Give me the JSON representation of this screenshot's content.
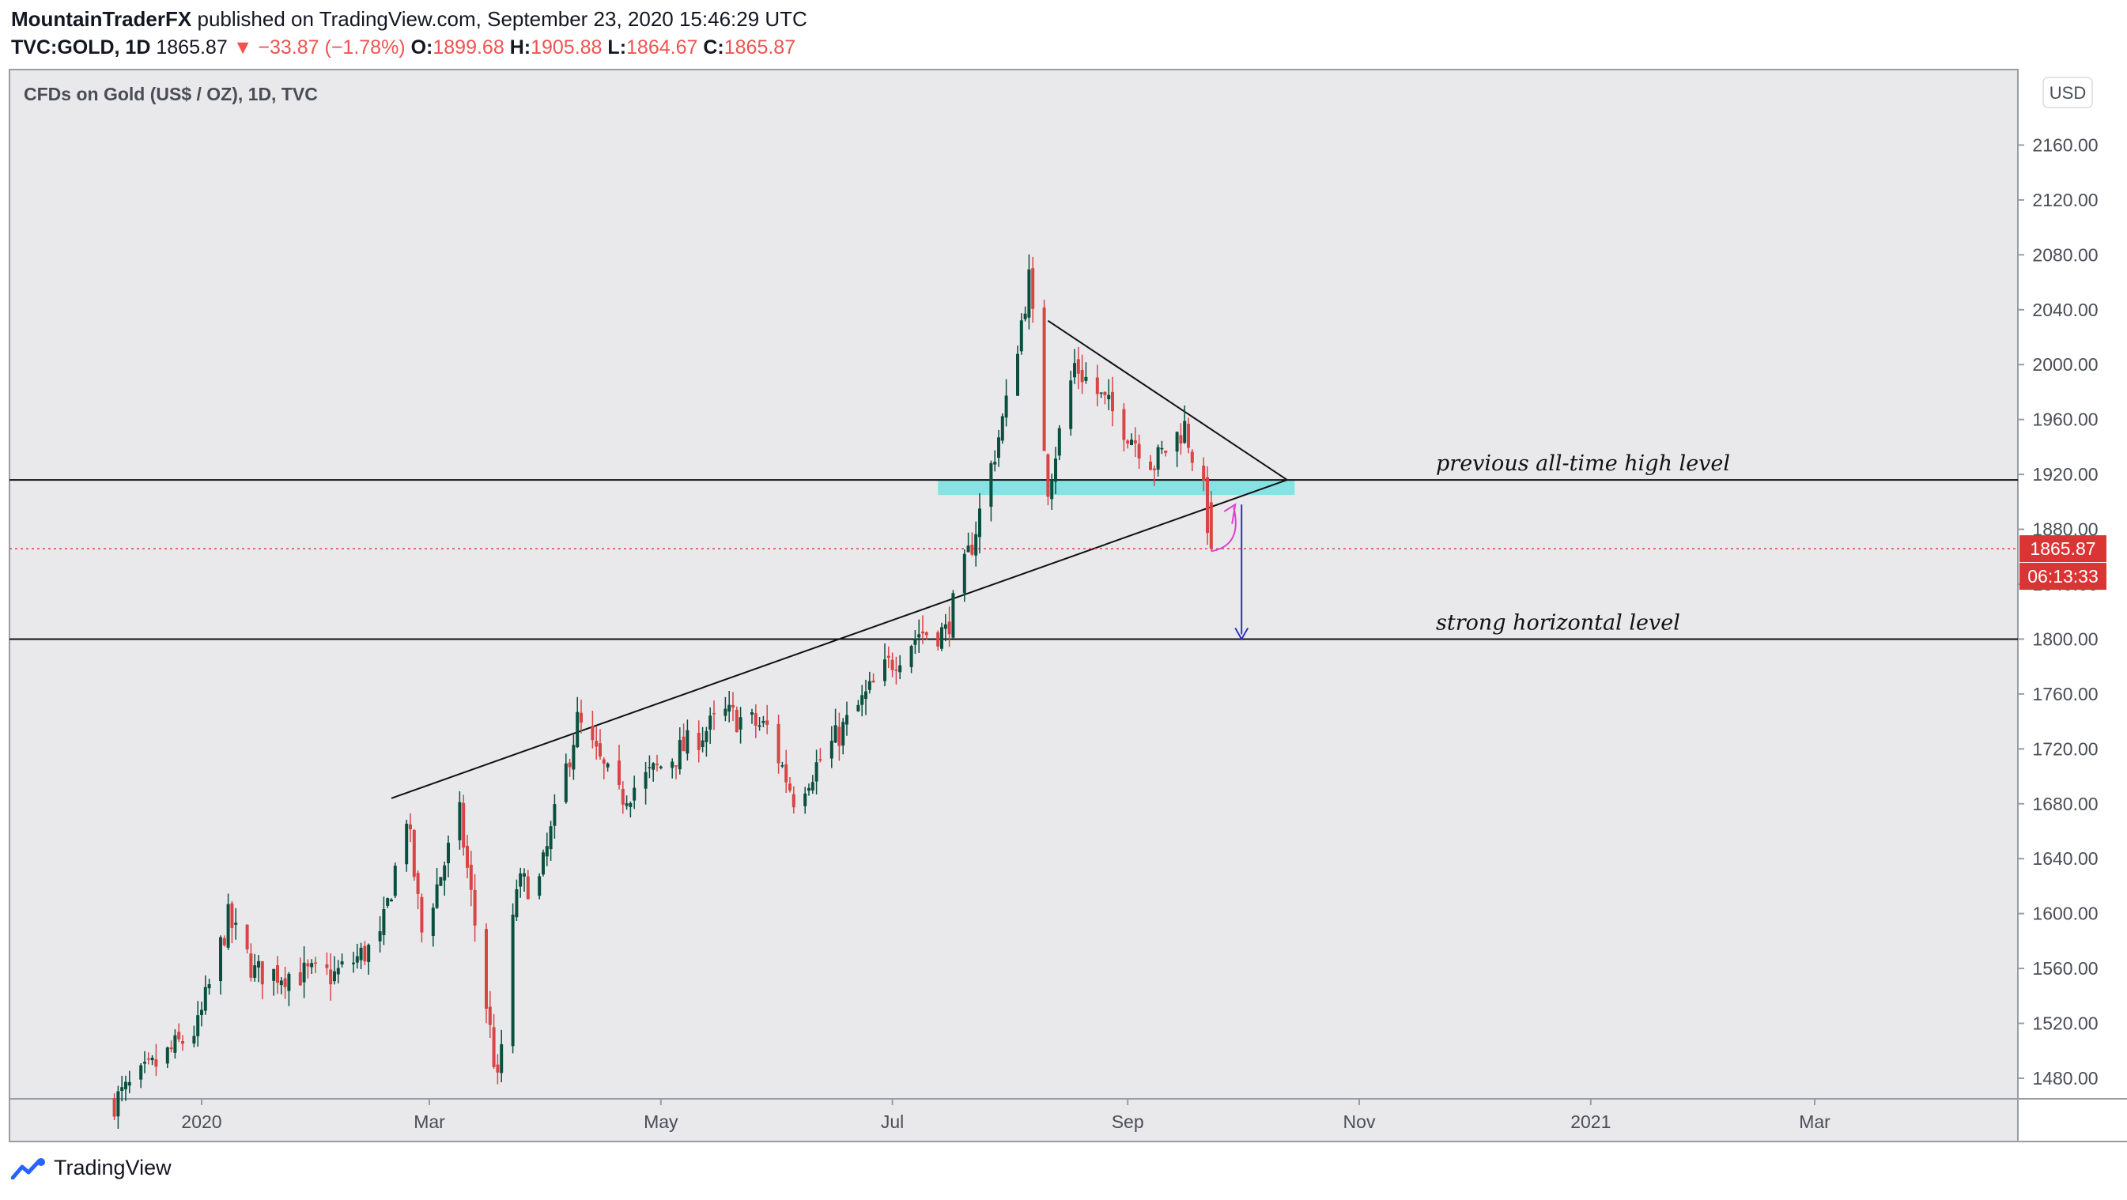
{
  "header": {
    "publisher": "MountainTraderFX",
    "published_text": "published on TradingView.com, September 23, 2020 15:46:29 UTC",
    "symbol": "TVC:GOLD, 1D",
    "last": "1865.87",
    "change": "−33.87 (−1.78%)",
    "o_label": "O:",
    "o": "1899.68",
    "h_label": "H:",
    "h": "1905.88",
    "l_label": "L:",
    "l": "1864.67",
    "c_label": "C:",
    "c": "1865.87",
    "arrow": "▼"
  },
  "footer": {
    "brand": "TradingView"
  },
  "colors": {
    "up": "#0b4f3f",
    "down": "#d94545",
    "zone": "#7fe3e3",
    "pink": "#e040d0",
    "navy": "#3030c0",
    "last_tag": "#d93535"
  },
  "chart_data": {
    "type": "candlestick",
    "title": "CFDs on Gold (US$ / OZ), 1D, TVC",
    "currency": "USD",
    "ylim": [
      1465,
      2215
    ],
    "y_ticks": [
      1480,
      1520,
      1560,
      1600,
      1640,
      1680,
      1720,
      1760,
      1800,
      1840,
      1880,
      1920,
      1960,
      2000,
      2040,
      2080,
      2120,
      2160
    ],
    "y_tick_labels": [
      "1480.00",
      "1520.00",
      "1560.00",
      "1600.00",
      "1640.00",
      "1680.00",
      "1720.00",
      "1760.00",
      "1800.00",
      "1840.00",
      "1880.00",
      "1920.00",
      "1960.00",
      "2000.00",
      "2040.00",
      "2080.00",
      "2120.00",
      "2160.00"
    ],
    "x_labels": [
      "2020",
      "Mar",
      "May",
      "Jul",
      "Sep",
      "Nov",
      "2021",
      "Mar"
    ],
    "last_price_label": "1865.87",
    "countdown_label": "06:13:33",
    "last_price": 1865.87,
    "anchors": [
      [
        "2019-12-09",
        1463
      ],
      [
        "2019-12-31",
        1517
      ],
      [
        "2020-01-08",
        1596
      ],
      [
        "2020-01-15",
        1557
      ],
      [
        "2020-02-05",
        1555
      ],
      [
        "2020-02-17",
        1580
      ],
      [
        "2020-02-24",
        1672
      ],
      [
        "2020-02-28",
        1586
      ],
      [
        "2020-03-09",
        1671
      ],
      [
        "2020-03-19",
        1475
      ],
      [
        "2020-03-24",
        1620
      ],
      [
        "2020-03-30",
        1623
      ],
      [
        "2020-04-09",
        1740
      ],
      [
        "2020-04-20",
        1684
      ],
      [
        "2020-04-30",
        1705
      ],
      [
        "2020-05-18",
        1745
      ],
      [
        "2020-05-29",
        1735
      ],
      [
        "2020-06-05",
        1685
      ],
      [
        "2020-06-16",
        1727
      ],
      [
        "2020-06-30",
        1781
      ],
      [
        "2020-07-08",
        1805
      ],
      [
        "2020-07-15",
        1805
      ],
      [
        "2020-07-22",
        1870
      ],
      [
        "2020-07-31",
        1970
      ],
      [
        "2020-08-06",
        2062
      ],
      [
        "2020-08-11",
        1912
      ],
      [
        "2020-08-18",
        2000
      ],
      [
        "2020-08-28",
        1965
      ],
      [
        "2020-09-08",
        1928
      ],
      [
        "2020-09-16",
        1955
      ],
      [
        "2020-09-21",
        1905
      ],
      [
        "2020-09-23",
        1866
      ]
    ],
    "horizontal_levels": [
      {
        "price": 1916,
        "label": "previous all-time high level"
      },
      {
        "price": 1800,
        "label": "strong horizontal level"
      }
    ],
    "resistance_zone": {
      "from": 1905,
      "to": 1916
    },
    "trendlines": [
      {
        "from": [
          "2020-02-20",
          1684
        ],
        "to": [
          "2020-10-13",
          1916
        ]
      },
      {
        "from": [
          "2020-08-11",
          2032
        ],
        "to": [
          "2020-10-13",
          1916
        ]
      }
    ],
    "projection": {
      "date": "2020-10-01",
      "from": 1898,
      "to": 1800
    }
  }
}
